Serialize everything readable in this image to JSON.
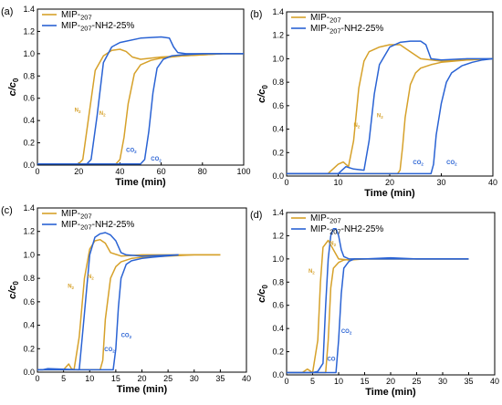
{
  "figure": {
    "colors": {
      "MIP-207": "#d6a12a",
      "MIP-207-NH2-25%": "#2a63d4"
    }
  },
  "chart_data": [
    {
      "type": "line",
      "panel": "(a)",
      "xlabel": "Time (min)",
      "ylabel": "c/c0",
      "xlim": [
        0,
        100
      ],
      "ylim": [
        0,
        1.4
      ],
      "xticks": [
        "0",
        "20",
        "40",
        "60",
        "80",
        "100"
      ],
      "yticks": [
        "0.0",
        "0.2",
        "0.4",
        "0.6",
        "0.8",
        "1.0",
        "1.2",
        "1.4"
      ],
      "legend": [
        "MIP-207",
        "MIP-207-NH2-25%"
      ],
      "legend_position": "top-left",
      "series": [
        {
          "name": "MIP-207",
          "gas": "N2",
          "color": "#d6a12a",
          "x": [
            0,
            20,
            22,
            25,
            28,
            32,
            36,
            40,
            43,
            46,
            50,
            55,
            60,
            70,
            80,
            90,
            100
          ],
          "y": [
            0.01,
            0.01,
            0.05,
            0.45,
            0.85,
            0.98,
            1.03,
            1.04,
            1.02,
            0.97,
            0.95,
            0.96,
            0.97,
            0.98,
            0.99,
            1.0,
            1.0
          ]
        },
        {
          "name": "MIP-207",
          "gas": "CO2",
          "color": "#d6a12a",
          "x": [
            0,
            38,
            40,
            42,
            44,
            47,
            50,
            55,
            60,
            70,
            80,
            90,
            100
          ],
          "y": [
            0.01,
            0.01,
            0.05,
            0.25,
            0.55,
            0.82,
            0.9,
            0.94,
            0.96,
            0.98,
            0.99,
            1.0,
            1.0
          ]
        },
        {
          "name": "MIP-207-NH2-25%",
          "gas": "N2",
          "color": "#2a63d4",
          "x": [
            0,
            24,
            26,
            29,
            32,
            36,
            40,
            50,
            60,
            64,
            66,
            68,
            72,
            80,
            90,
            100
          ],
          "y": [
            0.01,
            0.01,
            0.05,
            0.45,
            0.92,
            1.06,
            1.1,
            1.14,
            1.15,
            1.14,
            1.06,
            1.01,
            1.0,
            1.0,
            1.0,
            1.0
          ]
        },
        {
          "name": "MIP-207-NH2-25%",
          "gas": "CO2",
          "color": "#2a63d4",
          "x": [
            0,
            50,
            52,
            54,
            56,
            58,
            61,
            65,
            70,
            80,
            90,
            100
          ],
          "y": [
            0.01,
            0.01,
            0.05,
            0.3,
            0.65,
            0.87,
            0.95,
            0.98,
            0.99,
            1.0,
            1.0,
            1.0
          ]
        }
      ],
      "annotations": [
        "N2",
        "N2",
        "CO2",
        "CO2"
      ]
    },
    {
      "type": "line",
      "panel": "(b)",
      "xlabel": "Time (min)",
      "ylabel": "c/c0",
      "xlim": [
        0,
        40
      ],
      "ylim": [
        0,
        1.4
      ],
      "xticks": [
        "0",
        "10",
        "20",
        "30",
        "40"
      ],
      "yticks": [
        "0.0",
        "0.2",
        "0.4",
        "0.6",
        "0.8",
        "1.0",
        "1.2",
        "1.4"
      ],
      "legend": [
        "MIP-207",
        "MIP-207-NH2-25%"
      ],
      "legend_position": "top-left",
      "series": [
        {
          "name": "MIP-207",
          "gas": "N2",
          "color": "#d6a12a",
          "x": [
            0,
            8,
            10,
            11,
            12,
            13,
            14,
            15,
            16,
            18,
            20,
            22,
            24,
            26,
            30,
            35,
            40
          ],
          "y": [
            0.02,
            0.02,
            0.1,
            0.12,
            0.08,
            0.3,
            0.75,
            0.98,
            1.06,
            1.1,
            1.12,
            1.12,
            1.06,
            1.0,
            0.98,
            0.99,
            1.0
          ]
        },
        {
          "name": "MIP-207",
          "gas": "CO2",
          "color": "#d6a12a",
          "x": [
            0,
            21.5,
            22,
            22.5,
            23,
            24,
            25,
            26,
            28,
            30,
            35,
            40
          ],
          "y": [
            0.02,
            0.02,
            0.05,
            0.25,
            0.5,
            0.78,
            0.88,
            0.92,
            0.95,
            0.97,
            0.99,
            1.0
          ]
        },
        {
          "name": "MIP-207-NH2-25%",
          "gas": "N2",
          "color": "#2a63d4",
          "x": [
            0,
            10,
            11.5,
            13,
            15,
            16,
            17,
            18,
            20,
            22,
            24,
            26,
            27,
            28,
            30,
            35,
            40
          ],
          "y": [
            0.02,
            0.02,
            0.08,
            0.06,
            0.05,
            0.3,
            0.7,
            0.95,
            1.1,
            1.14,
            1.15,
            1.15,
            1.12,
            1.0,
            0.99,
            1.0,
            1.0
          ]
        },
        {
          "name": "MIP-207-NH2-25%",
          "gas": "CO2",
          "color": "#2a63d4",
          "x": [
            0,
            28,
            28.5,
            29,
            30,
            31,
            32,
            34,
            36,
            38,
            40
          ],
          "y": [
            0.02,
            0.02,
            0.1,
            0.35,
            0.62,
            0.8,
            0.88,
            0.94,
            0.97,
            0.99,
            1.0
          ]
        }
      ],
      "annotations": [
        "N2",
        "N2",
        "CO2",
        "CO2"
      ]
    },
    {
      "type": "line",
      "panel": "(c)",
      "xlabel": "Time (min)",
      "ylabel": "c/c0",
      "xlim": [
        0,
        40
      ],
      "ylim": [
        0,
        1.4
      ],
      "xticks": [
        "0",
        "5",
        "10",
        "15",
        "20",
        "25",
        "30",
        "35",
        "40"
      ],
      "yticks": [
        "0.0",
        "0.2",
        "0.4",
        "0.6",
        "0.8",
        "1.0",
        "1.2",
        "1.4"
      ],
      "legend": [
        "MIP-207",
        "MIP-207-NH2-25%"
      ],
      "legend_position": "top-left",
      "series": [
        {
          "name": "MIP-207",
          "gas": "N2",
          "color": "#d6a12a",
          "x": [
            0,
            5,
            6,
            6.5,
            7,
            8,
            9,
            10,
            11,
            12,
            13,
            14,
            16,
            20,
            25,
            30,
            35
          ],
          "y": [
            0.02,
            0.02,
            0.07,
            0.03,
            0.02,
            0.3,
            0.8,
            1.05,
            1.12,
            1.13,
            1.1,
            1.02,
            0.99,
            1.0,
            1.0,
            1.0,
            1.0
          ]
        },
        {
          "name": "MIP-207",
          "gas": "CO2",
          "color": "#d6a12a",
          "x": [
            0,
            12,
            12.5,
            13,
            14,
            15,
            16,
            18,
            20,
            25,
            30,
            35
          ],
          "y": [
            0.02,
            0.02,
            0.1,
            0.45,
            0.8,
            0.9,
            0.94,
            0.97,
            0.98,
            0.99,
            1.0,
            1.0
          ]
        },
        {
          "name": "MIP-207-NH2-25%",
          "gas": "N2",
          "color": "#2a63d4",
          "x": [
            0,
            1,
            2,
            8,
            9,
            10,
            11,
            12,
            13,
            14,
            15,
            16,
            17,
            20,
            27
          ],
          "y": [
            0.02,
            0.02,
            0.03,
            0.02,
            0.5,
            1.0,
            1.15,
            1.18,
            1.19,
            1.17,
            1.12,
            1.02,
            1.0,
            0.99,
            1.0
          ]
        },
        {
          "name": "MIP-207-NH2-25%",
          "gas": "CO2",
          "color": "#2a63d4",
          "x": [
            0,
            14.5,
            15,
            15.5,
            16,
            17,
            18,
            20,
            22,
            27
          ],
          "y": [
            0.02,
            0.02,
            0.2,
            0.55,
            0.8,
            0.92,
            0.95,
            0.97,
            0.98,
            1.0
          ]
        }
      ],
      "annotations": [
        "N2",
        "N2",
        "CO2",
        "CO2"
      ]
    },
    {
      "type": "line",
      "panel": "(d)",
      "xlabel": "Time (min)",
      "ylabel": "c/c0",
      "xlim": [
        0,
        40
      ],
      "ylim": [
        0,
        1.4
      ],
      "xticks": [
        "0",
        "5",
        "10",
        "15",
        "20",
        "25",
        "30",
        "35",
        "40"
      ],
      "yticks": [
        "0.0",
        "0.2",
        "0.4",
        "0.6",
        "0.8",
        "1.0",
        "1.2",
        "1.4"
      ],
      "legend": [
        "MIP-207",
        "MIP-207-NH2-25%"
      ],
      "legend_position": "top-left",
      "series": [
        {
          "name": "MIP-207",
          "gas": "N2",
          "color": "#d6a12a",
          "x": [
            0,
            3,
            4,
            5,
            6,
            6.5,
            7,
            8,
            9,
            10,
            12,
            15,
            20,
            25,
            30,
            35
          ],
          "y": [
            0.02,
            0.02,
            0.05,
            0.02,
            0.3,
            0.8,
            1.1,
            1.16,
            1.08,
            1.0,
            0.99,
            1.0,
            1.0,
            1.0,
            1.0,
            1.0
          ]
        },
        {
          "name": "MIP-207",
          "gas": "CO2",
          "color": "#d6a12a",
          "x": [
            0,
            7.5,
            8,
            8.5,
            9,
            10,
            11,
            13,
            15,
            20,
            25,
            30,
            35
          ],
          "y": [
            0.02,
            0.02,
            0.3,
            0.75,
            0.92,
            0.97,
            0.99,
            1.0,
            1.0,
            1.0,
            1.0,
            1.0,
            1.0
          ]
        },
        {
          "name": "MIP-207-NH2-25%",
          "gas": "N2",
          "color": "#2a63d4",
          "x": [
            0,
            5,
            6,
            7,
            7.5,
            8,
            8.5,
            9,
            9.5,
            10,
            10.5,
            11,
            12,
            15,
            20,
            25,
            30,
            35
          ],
          "y": [
            0.02,
            0.02,
            0.03,
            0.1,
            0.6,
            1.0,
            1.2,
            1.26,
            1.26,
            1.2,
            1.08,
            1.02,
            1.0,
            1.0,
            1.01,
            1.0,
            1.0,
            1.0
          ]
        },
        {
          "name": "MIP-207-NH2-25%",
          "gas": "CO2",
          "color": "#2a63d4",
          "x": [
            0,
            9.5,
            10,
            10.5,
            11,
            12,
            13,
            15,
            20,
            25,
            30,
            35
          ],
          "y": [
            0.02,
            0.02,
            0.3,
            0.7,
            0.92,
            0.98,
            1.0,
            1.0,
            1.0,
            1.0,
            1.0,
            1.0
          ]
        }
      ],
      "annotations": [
        "N2",
        "N2",
        "CO",
        "CO2"
      ]
    }
  ]
}
